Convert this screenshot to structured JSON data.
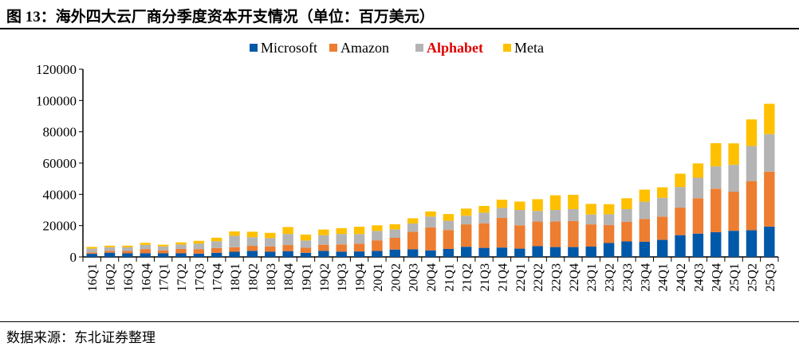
{
  "title": "图 13：海外四大云厂商分季度资本开支情况（单位：百万美元）",
  "source": "数据来源：东北证券整理",
  "chart_data": {
    "type": "bar",
    "stacked": true,
    "title": "图 13：海外四大云厂商分季度资本开支情况（单位：百万美元）",
    "xlabel": "",
    "ylabel": "",
    "ylim": [
      0,
      120000
    ],
    "yticks": [
      0,
      20000,
      40000,
      60000,
      80000,
      100000,
      120000
    ],
    "legend_position": "top-center",
    "grid": false,
    "categories": [
      "16Q1",
      "16Q2",
      "16Q3",
      "16Q4",
      "17Q1",
      "17Q2",
      "17Q3",
      "17Q4",
      "18Q1",
      "18Q2",
      "18Q3",
      "18Q4",
      "19Q1",
      "19Q2",
      "19Q3",
      "19Q4",
      "20Q1",
      "20Q2",
      "20Q3",
      "20Q4",
      "21Q1",
      "21Q2",
      "21Q3",
      "21Q4",
      "22Q1",
      "22Q2",
      "22Q3",
      "22Q4",
      "23Q1",
      "23Q2",
      "23Q3",
      "23Q4",
      "24Q1",
      "24Q2",
      "24Q3",
      "24Q4",
      "25Q1",
      "25Q2",
      "25Q3"
    ],
    "series": [
      {
        "name": "Microsoft",
        "color": "#0058A8",
        "legend_text_color": "#000000",
        "values": [
          2000,
          2700,
          2300,
          2400,
          2300,
          2300,
          2100,
          2600,
          3300,
          3900,
          3300,
          3700,
          2600,
          3900,
          3400,
          3500,
          3800,
          4700,
          4900,
          4200,
          5100,
          6500,
          5800,
          6000,
          5300,
          6900,
          6300,
          6300,
          6600,
          8900,
          9900,
          9700,
          10900,
          13900,
          14900,
          15800,
          16700,
          17100,
          19400
        ]
      },
      {
        "name": "Amazon",
        "color": "#ED7D31",
        "legend_text_color": "#000000",
        "values": [
          900,
          1200,
          1500,
          2600,
          1900,
          2800,
          2900,
          3100,
          2900,
          3200,
          3400,
          3900,
          3300,
          3900,
          4600,
          5000,
          6800,
          7500,
          11100,
          14700,
          12100,
          14300,
          15700,
          18900,
          14900,
          15700,
          16400,
          16600,
          14200,
          11500,
          12500,
          14600,
          14900,
          17600,
          22600,
          27800,
          25000,
          31400,
          35100
        ]
      },
      {
        "name": "Alphabet",
        "color": "#B4B4B4",
        "legend_text_color": "#E00000",
        "values": [
          2400,
          2300,
          2300,
          2700,
          2500,
          2800,
          3500,
          4300,
          7300,
          5500,
          5300,
          7100,
          4600,
          6100,
          6700,
          6100,
          6000,
          5400,
          5400,
          6900,
          5900,
          5500,
          6800,
          6400,
          9800,
          6800,
          7300,
          7600,
          6300,
          6900,
          8100,
          11000,
          12000,
          13200,
          13100,
          14300,
          17200,
          22400,
          24000
        ]
      },
      {
        "name": "Meta",
        "color": "#FFC000",
        "legend_text_color": "#000000",
        "values": [
          1100,
          1000,
          1100,
          1300,
          1100,
          1400,
          1800,
          2300,
          2800,
          3500,
          3400,
          4400,
          3800,
          3600,
          3700,
          4700,
          3600,
          3300,
          3300,
          3300,
          4300,
          4600,
          4300,
          5300,
          5400,
          7500,
          9400,
          9200,
          6800,
          6400,
          7000,
          7700,
          6700,
          8500,
          9200,
          14800,
          13700,
          17000,
          19400
        ]
      }
    ]
  }
}
